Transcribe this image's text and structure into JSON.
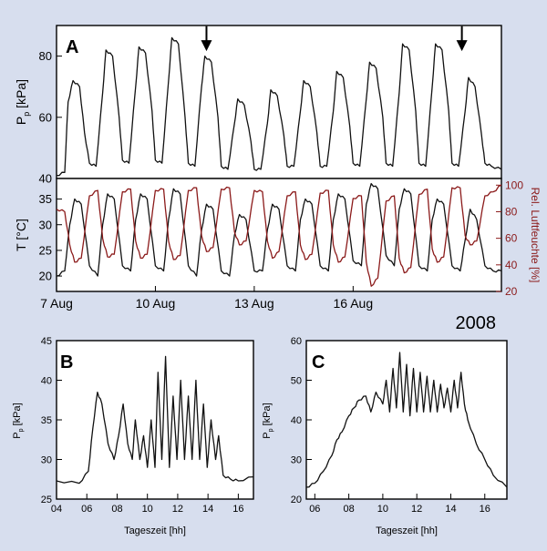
{
  "year_label": "2008",
  "chart_data": [
    {
      "panel_label": "A",
      "type": "line",
      "ylabel": "P",
      "ylabel_sub": "p",
      "ylabel_unit": " [kPa]",
      "xlim": [
        0,
        13.5
      ],
      "ylim": [
        40,
        90
      ],
      "yticks": [
        40,
        60,
        80
      ],
      "series": [
        {
          "color": "#111111",
          "x": [
            0.0,
            0.25,
            0.35,
            0.5,
            0.7,
            0.85,
            1.0,
            1.2,
            1.4,
            1.5,
            1.7,
            1.9,
            2.0,
            2.2,
            2.4,
            2.5,
            2.7,
            2.9,
            3.0,
            3.2,
            3.4,
            3.5,
            3.7,
            3.9,
            4.0,
            4.2,
            4.4,
            4.5,
            4.7,
            4.9,
            5.0,
            5.2,
            5.4,
            5.5,
            5.7,
            5.9,
            6.0,
            6.2,
            6.4,
            6.5,
            6.7,
            6.9,
            7.0,
            7.2,
            7.4,
            7.5,
            7.7,
            7.9,
            8.0,
            8.2,
            8.4,
            8.5,
            8.7,
            8.9,
            9.0,
            9.2,
            9.4,
            9.5,
            9.7,
            9.9,
            10.0,
            10.2,
            10.4,
            10.5,
            10.7,
            10.9,
            11.0,
            11.2,
            11.4,
            11.5,
            11.7,
            11.9,
            12.0,
            12.2,
            12.4,
            12.5,
            12.7,
            12.9,
            13.0,
            13.2,
            13.5
          ],
          "y": [
            41,
            42,
            65,
            72,
            70,
            55,
            45,
            44,
            68,
            82,
            80,
            60,
            46,
            45,
            70,
            83,
            81,
            62,
            46,
            45,
            72,
            86,
            84,
            60,
            45,
            44,
            70,
            80,
            78,
            60,
            44,
            43,
            58,
            66,
            64,
            52,
            43,
            43,
            58,
            69,
            67,
            54,
            44,
            44,
            62,
            72,
            70,
            55,
            44,
            44,
            62,
            75,
            73,
            57,
            45,
            44,
            66,
            78,
            76,
            60,
            45,
            44,
            68,
            84,
            82,
            62,
            45,
            44,
            70,
            84,
            82,
            62,
            45,
            44,
            62,
            73,
            70,
            54,
            45,
            44,
            43
          ]
        }
      ],
      "annotations": [
        {
          "type": "arrow",
          "x": 4.55,
          "y_from": 88,
          "y_to": 84
        },
        {
          "type": "arrow",
          "x": 12.3,
          "y_from": 88,
          "y_to": 84
        }
      ]
    },
    {
      "type": "line",
      "ylabel": "T [°C]",
      "y2label": "Rel. Luftfeuchte [%]",
      "xlim": [
        0,
        13.5
      ],
      "ylim": [
        17,
        39
      ],
      "yticks": [
        20,
        25,
        30,
        35
      ],
      "y2lim": [
        20,
        105
      ],
      "y2ticks": [
        20,
        40,
        60,
        80,
        100
      ],
      "xtick_values": [
        0,
        3,
        6,
        9
      ],
      "xtick_labels": [
        "7 Aug",
        "10 Aug",
        "13 Aug",
        "16 Aug"
      ],
      "series": [
        {
          "axis": "left",
          "color": "#111111",
          "x": [
            0.0,
            0.25,
            0.4,
            0.55,
            0.75,
            1.0,
            1.25,
            1.4,
            1.55,
            1.75,
            2.0,
            2.25,
            2.4,
            2.55,
            2.75,
            3.0,
            3.25,
            3.4,
            3.55,
            3.75,
            4.0,
            4.25,
            4.4,
            4.55,
            4.75,
            5.0,
            5.25,
            5.4,
            5.55,
            5.75,
            6.0,
            6.25,
            6.4,
            6.55,
            6.75,
            7.0,
            7.25,
            7.4,
            7.55,
            7.75,
            8.0,
            8.25,
            8.4,
            8.55,
            8.75,
            9.0,
            9.25,
            9.4,
            9.55,
            9.75,
            10.0,
            10.25,
            10.4,
            10.55,
            10.75,
            11.0,
            11.25,
            11.4,
            11.55,
            11.75,
            12.0,
            12.25,
            12.4,
            12.55,
            12.75,
            13.0,
            13.25,
            13.5
          ],
          "y": [
            20,
            21,
            30,
            35,
            34,
            22,
            20,
            30,
            36,
            35,
            22,
            21,
            31,
            36,
            35,
            22,
            21,
            31,
            37,
            36,
            22,
            20,
            29,
            34,
            33,
            21,
            20,
            28,
            32,
            31,
            21,
            21,
            29,
            34,
            33,
            22,
            21,
            31,
            35,
            34,
            22,
            21,
            31,
            36,
            35,
            23,
            22,
            34,
            38,
            37,
            24,
            22,
            33,
            37,
            36,
            22,
            21,
            31,
            35,
            34,
            22,
            21,
            27,
            33,
            31,
            22,
            21,
            21
          ]
        },
        {
          "axis": "right",
          "color": "#8b1a1a",
          "x": [
            0.0,
            0.25,
            0.4,
            0.55,
            0.75,
            1.0,
            1.25,
            1.4,
            1.55,
            1.75,
            2.0,
            2.25,
            2.4,
            2.55,
            2.75,
            3.0,
            3.25,
            3.4,
            3.55,
            3.75,
            4.0,
            4.25,
            4.4,
            4.55,
            4.75,
            5.0,
            5.25,
            5.4,
            5.55,
            5.75,
            6.0,
            6.25,
            6.4,
            6.55,
            6.75,
            7.0,
            7.25,
            7.4,
            7.55,
            7.75,
            8.0,
            8.25,
            8.4,
            8.55,
            8.75,
            9.0,
            9.25,
            9.4,
            9.55,
            9.75,
            10.0,
            10.25,
            10.4,
            10.55,
            10.75,
            11.0,
            11.25,
            11.4,
            11.55,
            11.75,
            12.0,
            12.25,
            12.4,
            12.55,
            12.75,
            13.0,
            13.25,
            13.5
          ],
          "y": [
            82,
            80,
            55,
            42,
            45,
            92,
            96,
            60,
            46,
            48,
            95,
            97,
            58,
            45,
            48,
            96,
            97,
            58,
            44,
            47,
            96,
            98,
            62,
            50,
            53,
            97,
            98,
            65,
            55,
            58,
            96,
            95,
            58,
            45,
            50,
            92,
            95,
            55,
            44,
            48,
            94,
            96,
            55,
            42,
            46,
            90,
            92,
            42,
            24,
            30,
            88,
            92,
            45,
            34,
            38,
            93,
            97,
            52,
            42,
            46,
            98,
            98,
            62,
            55,
            58,
            92,
            95,
            100
          ]
        }
      ]
    },
    {
      "panel_label": "B",
      "type": "line",
      "ylabel": "P",
      "ylabel_sub": "p",
      "ylabel_unit": " [kPa]",
      "xlabel": "Tageszeit [hh]",
      "xlim": [
        4,
        17
      ],
      "ylim": [
        25,
        45
      ],
      "xticks": [
        4,
        6,
        8,
        10,
        12,
        14,
        16
      ],
      "xtick_labels": [
        "04",
        "06",
        "08",
        "10",
        "12",
        "14",
        "16"
      ],
      "yticks": [
        25,
        30,
        35,
        40,
        45
      ],
      "series": [
        {
          "color": "#111111",
          "x": [
            4.0,
            5.5,
            6.1,
            6.4,
            6.7,
            7.0,
            7.4,
            7.8,
            8.1,
            8.4,
            8.7,
            9.0,
            9.2,
            9.5,
            9.75,
            10.0,
            10.25,
            10.5,
            10.7,
            10.95,
            11.2,
            11.45,
            11.7,
            11.95,
            12.2,
            12.45,
            12.7,
            12.95,
            13.2,
            13.45,
            13.7,
            13.95,
            14.2,
            14.5,
            14.7,
            15.0,
            15.5,
            16.0,
            17.0
          ],
          "y": [
            27.3,
            27.0,
            28.5,
            34,
            38.5,
            37,
            32,
            30,
            33,
            37,
            32,
            30,
            35,
            30,
            33,
            29,
            35,
            29,
            41,
            30,
            43,
            29,
            38,
            30,
            40,
            30,
            38,
            30,
            40,
            30,
            37,
            29,
            35,
            30,
            33,
            28,
            27.5,
            27.3,
            27.8
          ]
        }
      ]
    },
    {
      "panel_label": "C",
      "type": "line",
      "ylabel": "P",
      "ylabel_sub": "p",
      "ylabel_unit": " [kPa]",
      "xlabel": "Tageszeit [hh]",
      "xlim": [
        5.5,
        17.3
      ],
      "ylim": [
        20,
        60
      ],
      "xticks": [
        6,
        8,
        10,
        12,
        14,
        16
      ],
      "xtick_labels": [
        "06",
        "08",
        "10",
        "12",
        "14",
        "16"
      ],
      "yticks": [
        20,
        30,
        40,
        50,
        60
      ],
      "series": [
        {
          "color": "#111111",
          "x": [
            5.5,
            6.0,
            6.5,
            7.0,
            7.3,
            7.6,
            8.0,
            8.3,
            8.6,
            9.0,
            9.3,
            9.6,
            10.0,
            10.2,
            10.4,
            10.6,
            10.8,
            11.0,
            11.2,
            11.4,
            11.6,
            11.8,
            12.0,
            12.2,
            12.4,
            12.6,
            12.8,
            13.0,
            13.2,
            13.4,
            13.6,
            13.8,
            14.0,
            14.2,
            14.4,
            14.6,
            14.8,
            15.0,
            15.5,
            16.0,
            16.5,
            17.3
          ],
          "y": [
            23,
            24,
            27,
            31,
            35,
            37,
            41,
            43,
            45,
            46,
            42,
            47,
            44,
            50,
            42,
            53,
            43,
            57,
            42,
            54,
            41,
            53,
            42,
            52,
            42,
            51,
            42,
            50,
            42,
            49,
            43,
            48,
            42,
            50,
            43,
            52,
            44,
            40,
            34,
            30,
            26,
            23
          ]
        }
      ]
    }
  ]
}
